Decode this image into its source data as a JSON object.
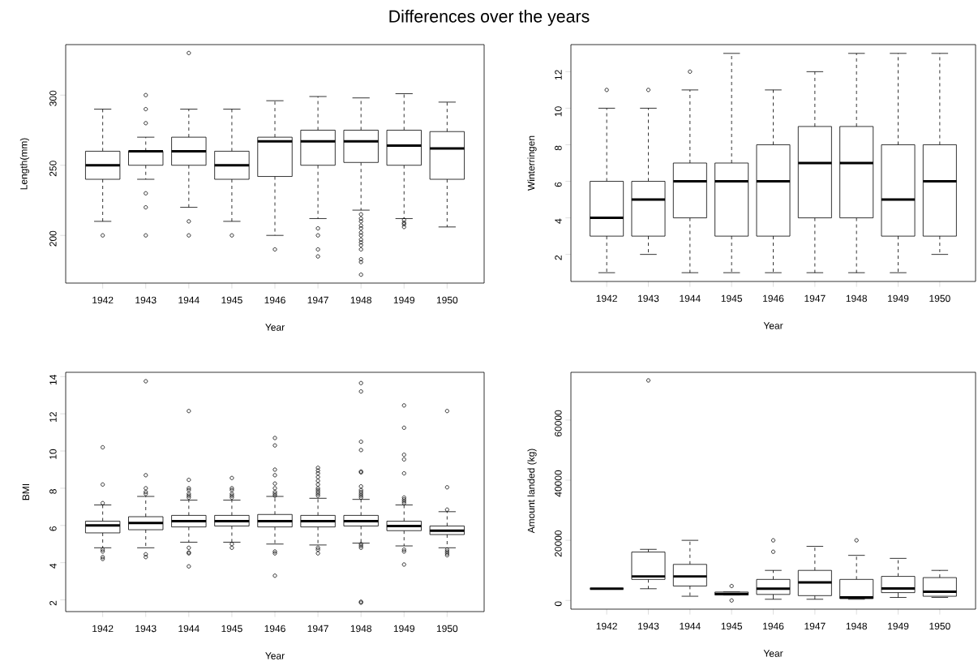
{
  "chart_data": [
    {
      "type": "box",
      "title": "Differences over the years",
      "xlabel": "Year",
      "ylabel": "Length(mm)",
      "categories": [
        "1942",
        "1943",
        "1944",
        "1945",
        "1946",
        "1947",
        "1948",
        "1949",
        "1950"
      ],
      "ylim": [
        166,
        336
      ],
      "yticks": [
        200,
        250,
        300
      ],
      "boxes": [
        {
          "low": 210,
          "q1": 240,
          "median": 250,
          "q3": 260,
          "high": 290,
          "outliers": [
            200
          ]
        },
        {
          "low": 240,
          "q1": 250,
          "median": 260,
          "q3": 260,
          "high": 270,
          "outliers": [
            300,
            290,
            280,
            230,
            220,
            200
          ]
        },
        {
          "low": 220,
          "q1": 250,
          "median": 260,
          "q3": 270,
          "high": 290,
          "outliers": [
            330,
            210,
            200
          ]
        },
        {
          "low": 210,
          "q1": 240,
          "median": 250,
          "q3": 260,
          "high": 290,
          "outliers": [
            200
          ]
        },
        {
          "low": 200,
          "q1": 242,
          "median": 267,
          "q3": 270,
          "high": 296,
          "outliers": [
            190
          ]
        },
        {
          "low": 212,
          "q1": 250,
          "median": 267,
          "q3": 275,
          "high": 299,
          "outliers": [
            205,
            200,
            190,
            185
          ]
        },
        {
          "low": 218,
          "q1": 252,
          "median": 267,
          "q3": 275,
          "high": 298,
          "outliers": [
            215,
            212,
            210,
            207,
            205,
            202,
            200,
            197,
            195,
            193,
            190,
            183,
            181,
            172
          ]
        },
        {
          "low": 212,
          "q1": 250,
          "median": 264,
          "q3": 275,
          "high": 301,
          "outliers": [
            211,
            209,
            208,
            206
          ]
        },
        {
          "low": 206,
          "q1": 240,
          "median": 262,
          "q3": 274,
          "high": 295
        }
      ]
    },
    {
      "type": "box",
      "xlabel": "Year",
      "ylabel": "Winterringen",
      "categories": [
        "1942",
        "1943",
        "1944",
        "1945",
        "1946",
        "1947",
        "1948",
        "1949",
        "1950"
      ],
      "ylim": [
        0.52,
        13.48
      ],
      "yticks": [
        2,
        4,
        6,
        8,
        10,
        12
      ],
      "boxes": [
        {
          "low": 1,
          "q1": 3,
          "median": 4,
          "q3": 6,
          "high": 10,
          "outliers": [
            11
          ]
        },
        {
          "low": 2,
          "q1": 3,
          "median": 5,
          "q3": 6,
          "high": 10,
          "outliers": [
            11
          ]
        },
        {
          "low": 1,
          "q1": 4,
          "median": 6,
          "q3": 7,
          "high": 11,
          "outliers": [
            12
          ]
        },
        {
          "low": 1,
          "q1": 3,
          "median": 6,
          "q3": 7,
          "high": 13
        },
        {
          "low": 1,
          "q1": 3,
          "median": 6,
          "q3": 8,
          "high": 11
        },
        {
          "low": 1,
          "q1": 4,
          "median": 7,
          "q3": 9,
          "high": 12
        },
        {
          "low": 1,
          "q1": 4,
          "median": 7,
          "q3": 9,
          "high": 13
        },
        {
          "low": 1,
          "q1": 3,
          "median": 5,
          "q3": 8,
          "high": 13
        },
        {
          "low": 2,
          "q1": 3,
          "median": 6,
          "q3": 8,
          "high": 13
        }
      ]
    },
    {
      "type": "box",
      "xlabel": "Year",
      "ylabel": "BMI",
      "categories": [
        "1942",
        "1943",
        "1944",
        "1945",
        "1946",
        "1947",
        "1948",
        "1949",
        "1950"
      ],
      "ylim": [
        1.37,
        14.23
      ],
      "yticks": [
        2,
        4,
        6,
        8,
        10,
        12,
        14
      ],
      "boxes": [
        {
          "low": 4.8,
          "q1": 5.6,
          "median": 6.0,
          "q3": 6.23,
          "high": 7.1,
          "outliers": [
            10.2,
            8.2,
            7.2,
            4.7,
            4.6,
            4.3,
            4.2
          ]
        },
        {
          "low": 4.8,
          "q1": 5.77,
          "median": 6.13,
          "q3": 6.47,
          "high": 7.56,
          "outliers": [
            13.75,
            8.7,
            8.0,
            7.8,
            7.7,
            4.45,
            4.3
          ]
        },
        {
          "low": 5.1,
          "q1": 5.92,
          "median": 6.23,
          "q3": 6.54,
          "high": 7.36,
          "outliers": [
            12.15,
            8.45,
            8.0,
            7.9,
            7.7,
            7.6,
            7.5,
            4.8,
            4.55,
            4.5,
            3.8
          ]
        },
        {
          "low": 5.1,
          "q1": 5.97,
          "median": 6.23,
          "q3": 6.54,
          "high": 7.36,
          "outliers": [
            8.55,
            8.0,
            7.9,
            7.7,
            7.6,
            7.5,
            5.0,
            4.8
          ]
        },
        {
          "low": 5.0,
          "q1": 5.92,
          "median": 6.23,
          "q3": 6.59,
          "high": 7.56,
          "outliers": [
            10.7,
            10.3,
            9.0,
            8.7,
            8.25,
            8.0,
            7.8,
            7.7,
            7.6,
            4.6,
            4.5,
            3.3
          ]
        },
        {
          "low": 4.95,
          "q1": 5.92,
          "median": 6.23,
          "q3": 6.54,
          "high": 7.46,
          "outliers": [
            9.1,
            8.95,
            8.8,
            8.6,
            8.4,
            8.2,
            8.0,
            7.9,
            7.8,
            7.7,
            7.6,
            4.8,
            4.7,
            4.5
          ]
        },
        {
          "low": 5.05,
          "q1": 5.97,
          "median": 6.23,
          "q3": 6.54,
          "high": 7.4,
          "outliers": [
            13.65,
            13.2,
            10.5,
            10.05,
            8.9,
            8.85,
            8.1,
            7.9,
            7.8,
            7.7,
            7.6,
            7.5,
            5.0,
            4.9,
            4.8,
            1.9,
            1.85
          ]
        },
        {
          "low": 4.9,
          "q1": 5.72,
          "median": 5.97,
          "q3": 6.23,
          "high": 7.1,
          "outliers": [
            12.45,
            11.25,
            9.8,
            9.55,
            8.8,
            7.5,
            7.4,
            7.3,
            7.2,
            4.7,
            4.6,
            3.9
          ]
        },
        {
          "low": 4.8,
          "q1": 5.51,
          "median": 5.72,
          "q3": 5.97,
          "high": 6.74,
          "outliers": [
            12.15,
            8.05,
            6.85,
            4.7,
            4.6,
            4.5,
            4.4
          ]
        }
      ]
    },
    {
      "type": "box",
      "xlabel": "Year",
      "ylabel": "Amount landed  (kg)",
      "categories": [
        "1942",
        "1943",
        "1944",
        "1945",
        "1946",
        "1947",
        "1948",
        "1949",
        "1950"
      ],
      "ylim": [
        -2900,
        75900
      ],
      "yticks": [
        0,
        20000,
        40000,
        60000
      ],
      "boxes": [
        {
          "low": 3900,
          "q1": 3900,
          "median": 3900,
          "q3": 3900,
          "high": 3900
        },
        {
          "low": 3900,
          "q1": 7000,
          "median": 8000,
          "q3": 16100,
          "high": 17000,
          "outliers": [
            73200
          ]
        },
        {
          "low": 1400,
          "q1": 4800,
          "median": 8000,
          "q3": 12000,
          "high": 20000
        },
        {
          "low": 1800,
          "q1": 1800,
          "median": 2200,
          "q3": 2800,
          "high": 2800,
          "outliers": [
            4800,
            0
          ]
        },
        {
          "low": 400,
          "q1": 2000,
          "median": 3900,
          "q3": 7000,
          "high": 10000,
          "outliers": [
            20000,
            16200
          ]
        },
        {
          "low": 400,
          "q1": 1600,
          "median": 6000,
          "q3": 10000,
          "high": 18000
        },
        {
          "low": 400,
          "q1": 600,
          "median": 1000,
          "q3": 7000,
          "high": 15000,
          "outliers": [
            20000
          ]
        },
        {
          "low": 1000,
          "q1": 2600,
          "median": 4000,
          "q3": 8000,
          "high": 14000
        },
        {
          "low": 1000,
          "q1": 1400,
          "median": 2900,
          "q3": 7600,
          "high": 10000
        }
      ]
    }
  ]
}
